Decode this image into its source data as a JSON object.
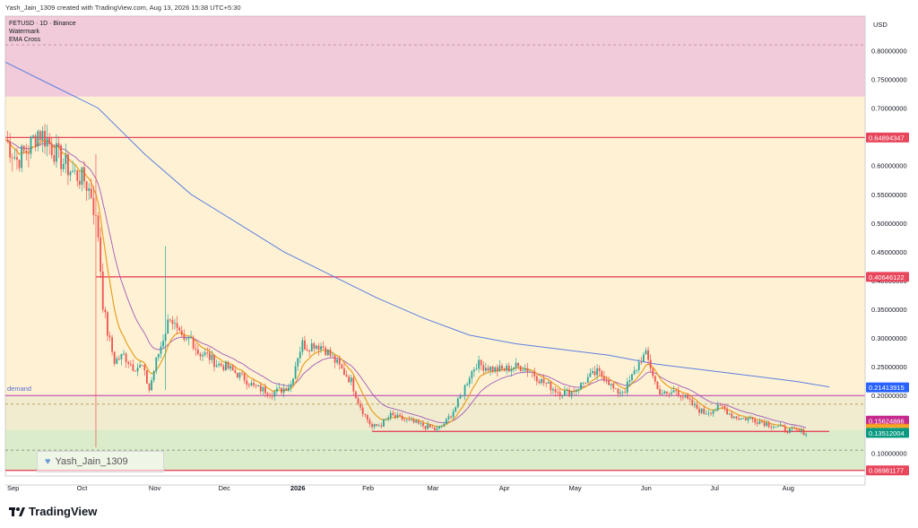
{
  "header": {
    "created_text": "Yash_Jain_1309 created with TradingView.com, Aug 13, 2026 15:38 UTC+5:30"
  },
  "legend": {
    "symbol_line": "FETUSD · 1D · Binance",
    "line2": "Watermark",
    "line3": "EMA Cross"
  },
  "watermark": {
    "text": "Yash_Jain_1309",
    "icon": "heart-icon"
  },
  "brand": {
    "name": "TradingView",
    "icon": "tradingview-logo-icon"
  },
  "zone_label": "demand",
  "chart_data": {
    "type": "candlestick",
    "currency": "USD",
    "ylim": [
      0.06,
      0.86
    ],
    "y_ticks": [
      "0.80000000",
      "0.75000000",
      "0.70000000",
      "0.65000000",
      "0.60000000",
      "0.55000000",
      "0.50000000",
      "0.45000000",
      "0.40000000",
      "0.35000000",
      "0.30000000",
      "0.25000000",
      "0.20000000",
      "0.15000000",
      "0.10000000"
    ],
    "y_tick_values": [
      0.8,
      0.75,
      0.7,
      0.65,
      0.6,
      0.55,
      0.5,
      0.45,
      0.4,
      0.35,
      0.3,
      0.25,
      0.2,
      0.15,
      0.1
    ],
    "x_labels": [
      {
        "label": "Sep",
        "day": 0
      },
      {
        "label": "Oct",
        "day": 30
      },
      {
        "label": "Nov",
        "day": 61
      },
      {
        "label": "Dec",
        "day": 91
      },
      {
        "label": "2026",
        "day": 122
      },
      {
        "label": "Feb",
        "day": 153
      },
      {
        "label": "Mar",
        "day": 181
      },
      {
        "label": "Apr",
        "day": 212
      },
      {
        "label": "May",
        "day": 242
      },
      {
        "label": "Jun",
        "day": 273
      },
      {
        "label": "Jul",
        "day": 303
      },
      {
        "label": "Aug",
        "day": 334
      }
    ],
    "x_range_days": [
      0,
      355
    ],
    "price_tags": [
      {
        "value": 0.64894347,
        "label": "0.64894347",
        "color": "#e8465b"
      },
      {
        "value": 0.40646122,
        "label": "0.40646122",
        "color": "#e8465b"
      },
      {
        "value": 0.21413915,
        "label": "0.21413915",
        "color": "#2962ff"
      },
      {
        "value": 0.15624886,
        "label": "0.15624886",
        "color": "#c62a8c"
      },
      {
        "value": 0.14262042,
        "label": "0.14262042",
        "color": "#f0542f"
      },
      {
        "value": 0.14147394,
        "label": "0.14147394",
        "color": "#f5a623"
      },
      {
        "value": 0.13512004,
        "label": "0.13512004",
        "color": "#089981"
      },
      {
        "value": 0.06981177,
        "label": "0.06981177",
        "color": "#e8465b"
      }
    ],
    "zones": [
      {
        "name": "upper-pink-zone",
        "from": 0.72,
        "to": 0.86,
        "color": "rgba(225,140,170,0.45)"
      },
      {
        "name": "middle-yellow-zone",
        "from": 0.2,
        "to": 0.72,
        "color": "rgba(255,226,160,0.45)"
      },
      {
        "name": "demand-zone",
        "from": 0.14,
        "to": 0.2,
        "color": "rgba(215,200,120,0.35)"
      },
      {
        "name": "lower-green-zone",
        "from": 0.0698,
        "to": 0.14,
        "color": "rgba(190,220,160,0.55)"
      }
    ],
    "horizontal_lines": [
      {
        "value": 0.64894347,
        "color": "#e8465b",
        "style": "solid",
        "from_day": 0
      },
      {
        "value": 0.40646122,
        "color": "#e8465b",
        "style": "solid",
        "from_day": 39
      },
      {
        "value": 0.06981177,
        "color": "#e8465b",
        "style": "solid",
        "from_day": 0
      },
      {
        "value": 0.13751,
        "color": "#e8465b",
        "style": "solid",
        "from_day": 158,
        "to_day": 355
      },
      {
        "value": 0.81,
        "color": "#c88aa0",
        "style": "dashed",
        "from_day": 0
      },
      {
        "value": 0.2,
        "color": "#c45ab0",
        "style": "solid",
        "from_day": 0
      },
      {
        "value": 0.185,
        "color": "#b08a3a",
        "style": "dashed",
        "from_day": 0
      },
      {
        "value": 0.105,
        "color": "#7a7a7a",
        "style": "dashed",
        "from_day": 0
      }
    ],
    "ema_long_color": "#5b7fe0",
    "ema_mid_color": "#a05ab8",
    "ema_short_color": "#e8a020",
    "up_color": "#26a69a",
    "down_color": "#ef5350",
    "close_path": [
      [
        0,
        0.645
      ],
      [
        5,
        0.61
      ],
      [
        10,
        0.63
      ],
      [
        14,
        0.66
      ],
      [
        18,
        0.645
      ],
      [
        22,
        0.62
      ],
      [
        26,
        0.6
      ],
      [
        30,
        0.585
      ],
      [
        34,
        0.575
      ],
      [
        37,
        0.55
      ],
      [
        40,
        0.48
      ],
      [
        42,
        0.36
      ],
      [
        44,
        0.31
      ],
      [
        47,
        0.26
      ],
      [
        51,
        0.27
      ],
      [
        55,
        0.25
      ],
      [
        59,
        0.25
      ],
      [
        62,
        0.21
      ],
      [
        65,
        0.26
      ],
      [
        68,
        0.3
      ],
      [
        71,
        0.34
      ],
      [
        74,
        0.31
      ],
      [
        77,
        0.29
      ],
      [
        80,
        0.3
      ],
      [
        83,
        0.275
      ],
      [
        87,
        0.27
      ],
      [
        91,
        0.255
      ],
      [
        95,
        0.25
      ],
      [
        99,
        0.24
      ],
      [
        103,
        0.23
      ],
      [
        107,
        0.215
      ],
      [
        111,
        0.21
      ],
      [
        115,
        0.205
      ],
      [
        119,
        0.21
      ],
      [
        123,
        0.22
      ],
      [
        126,
        0.27
      ],
      [
        128,
        0.29
      ],
      [
        130,
        0.285
      ],
      [
        133,
        0.29
      ],
      [
        137,
        0.285
      ],
      [
        141,
        0.265
      ],
      [
        145,
        0.245
      ],
      [
        149,
        0.225
      ],
      [
        152,
        0.19
      ],
      [
        155,
        0.165
      ],
      [
        158,
        0.145
      ],
      [
        162,
        0.15
      ],
      [
        166,
        0.165
      ],
      [
        170,
        0.16
      ],
      [
        174,
        0.155
      ],
      [
        178,
        0.15
      ],
      [
        182,
        0.145
      ],
      [
        186,
        0.14
      ],
      [
        190,
        0.155
      ],
      [
        194,
        0.18
      ],
      [
        197,
        0.205
      ],
      [
        200,
        0.235
      ],
      [
        203,
        0.255
      ],
      [
        207,
        0.25
      ],
      [
        211,
        0.245
      ],
      [
        215,
        0.245
      ],
      [
        219,
        0.25
      ],
      [
        223,
        0.25
      ],
      [
        227,
        0.24
      ],
      [
        231,
        0.225
      ],
      [
        235,
        0.215
      ],
      [
        239,
        0.205
      ],
      [
        243,
        0.205
      ],
      [
        247,
        0.215
      ],
      [
        251,
        0.23
      ],
      [
        255,
        0.24
      ],
      [
        259,
        0.23
      ],
      [
        263,
        0.205
      ],
      [
        267,
        0.21
      ],
      [
        271,
        0.24
      ],
      [
        274,
        0.265
      ],
      [
        276,
        0.27
      ],
      [
        278,
        0.25
      ],
      [
        281,
        0.21
      ],
      [
        285,
        0.2
      ],
      [
        289,
        0.21
      ],
      [
        293,
        0.195
      ],
      [
        297,
        0.18
      ],
      [
        301,
        0.17
      ],
      [
        305,
        0.175
      ],
      [
        309,
        0.18
      ],
      [
        313,
        0.165
      ],
      [
        317,
        0.16
      ],
      [
        321,
        0.16
      ],
      [
        325,
        0.155
      ],
      [
        329,
        0.15
      ],
      [
        333,
        0.145
      ],
      [
        337,
        0.14
      ],
      [
        341,
        0.138
      ],
      [
        345,
        0.135
      ]
    ],
    "notable_wicks": [
      {
        "day": 39,
        "high": 0.62,
        "low": 0.11
      },
      {
        "day": 69,
        "high": 0.46,
        "low": 0.21
      }
    ],
    "sma_long_path": [
      [
        0,
        0.78
      ],
      [
        20,
        0.74
      ],
      [
        40,
        0.7
      ],
      [
        60,
        0.62
      ],
      [
        80,
        0.55
      ],
      [
        100,
        0.5
      ],
      [
        120,
        0.45
      ],
      [
        140,
        0.41
      ],
      [
        160,
        0.37
      ],
      [
        180,
        0.335
      ],
      [
        200,
        0.305
      ],
      [
        220,
        0.29
      ],
      [
        240,
        0.28
      ],
      [
        260,
        0.27
      ],
      [
        280,
        0.255
      ],
      [
        300,
        0.245
      ],
      [
        320,
        0.235
      ],
      [
        340,
        0.225
      ],
      [
        355,
        0.215
      ]
    ]
  }
}
